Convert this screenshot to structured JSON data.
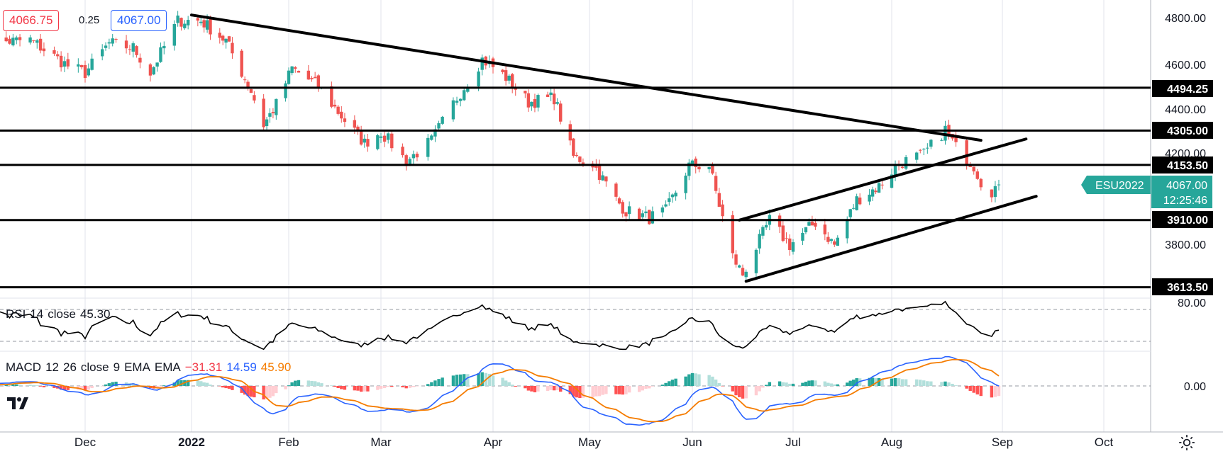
{
  "header": {
    "bid": "4066.75",
    "spread": "0.25",
    "ask": "4067.00"
  },
  "price_axis": {
    "ticks": [
      "4800.00",
      "4600.00",
      "4400.00",
      "4200.00",
      "3800.00"
    ],
    "level_labels": [
      "4494.25",
      "4305.00",
      "4153.50",
      "3910.00",
      "3613.50"
    ],
    "last_price": "4067.00",
    "countdown": "12:25:46",
    "symbol": "ESU2022",
    "last_color": "#26a69a",
    "level_color": "#000000"
  },
  "rsi": {
    "legend": {
      "name": "RSI",
      "length": "14",
      "source": "close",
      "value": "45.30"
    },
    "axis_tick": "80.00"
  },
  "macd": {
    "legend": {
      "name": "MACD",
      "fast": "12",
      "slow": "26",
      "source": "close",
      "signal": "9",
      "ma": "EMA",
      "ma2": "EMA",
      "v1": "−31.31",
      "v2": "14.59",
      "v3": "45.90"
    },
    "axis_tick": "0.00"
  },
  "time_axis": {
    "labels": [
      "Dec",
      "2022",
      "Feb",
      "Mar",
      "Apr",
      "May",
      "Jun",
      "Jul",
      "Aug",
      "Sep",
      "Oct"
    ]
  },
  "icons": {
    "logo": "tradingview-logo-icon",
    "settings": "gear-icon"
  },
  "colors": {
    "up": "#26a69a",
    "down": "#ef5350",
    "macd_line": "#2962ff",
    "signal_line": "#f57c00"
  },
  "chart_data": {
    "type": "candlestick",
    "instrument": "ESU2022",
    "timeframe": "daily",
    "x_range": [
      "2021-11",
      "2022-10"
    ],
    "ylim": [
      3550,
      4850
    ],
    "horizontal_levels": [
      4494.25,
      4305.0,
      4153.5,
      3910.0,
      3613.5
    ],
    "trendlines": [
      {
        "name": "falling resistance",
        "from": [
          "2022-01-01",
          4815
        ],
        "to": [
          "2022-08-26",
          4262
        ]
      },
      {
        "name": "upper channel",
        "from": [
          "2022-06-15",
          3910
        ],
        "to": [
          "2022-09-08",
          4268
        ]
      },
      {
        "name": "lower channel",
        "from": [
          "2022-06-17",
          3640
        ],
        "to": [
          "2022-09-11",
          4015
        ]
      }
    ],
    "series": [
      {
        "name": "price",
        "approx_closes": [
          [
            "2021-11-01",
            4690
          ],
          [
            "2021-11-15",
            4705
          ],
          [
            "2021-11-26",
            4590
          ],
          [
            "2021-12-01",
            4560
          ],
          [
            "2021-12-08",
            4690
          ],
          [
            "2021-12-15",
            4670
          ],
          [
            "2021-12-20",
            4560
          ],
          [
            "2021-12-28",
            4790
          ],
          [
            "2022-01-04",
            4790
          ],
          [
            "2022-01-12",
            4700
          ],
          [
            "2022-01-20",
            4480
          ],
          [
            "2022-01-24",
            4330
          ],
          [
            "2022-01-28",
            4420
          ],
          [
            "2022-02-02",
            4580
          ],
          [
            "2022-02-10",
            4500
          ],
          [
            "2022-02-18",
            4350
          ],
          [
            "2022-02-24",
            4250
          ],
          [
            "2022-03-01",
            4300
          ],
          [
            "2022-03-08",
            4170
          ],
          [
            "2022-03-15",
            4260
          ],
          [
            "2022-03-22",
            4450
          ],
          [
            "2022-03-29",
            4620
          ],
          [
            "2022-04-05",
            4540
          ],
          [
            "2022-04-12",
            4430
          ],
          [
            "2022-04-20",
            4450
          ],
          [
            "2022-04-26",
            4190
          ],
          [
            "2022-05-02",
            4160
          ],
          [
            "2022-05-09",
            4000
          ],
          [
            "2022-05-12",
            3950
          ],
          [
            "2022-05-19",
            3920
          ],
          [
            "2022-05-24",
            3950
          ],
          [
            "2022-05-31",
            4150
          ],
          [
            "2022-06-06",
            4150
          ],
          [
            "2022-06-10",
            3920
          ],
          [
            "2022-06-13",
            3750
          ],
          [
            "2022-06-16",
            3670
          ],
          [
            "2022-06-24",
            3910
          ],
          [
            "2022-06-30",
            3800
          ],
          [
            "2022-07-08",
            3900
          ],
          [
            "2022-07-14",
            3800
          ],
          [
            "2022-07-21",
            4000
          ],
          [
            "2022-07-28",
            4060
          ],
          [
            "2022-08-03",
            4160
          ],
          [
            "2022-08-10",
            4200
          ],
          [
            "2022-08-16",
            4310
          ],
          [
            "2022-08-19",
            4230
          ],
          [
            "2022-08-24",
            4150
          ],
          [
            "2022-08-26",
            4080
          ],
          [
            "2022-08-29",
            4040
          ],
          [
            "2022-08-31",
            4067
          ]
        ]
      }
    ],
    "rsi": {
      "length": 14,
      "value": 45.3,
      "levels": [
        70,
        30
      ]
    },
    "macd": {
      "fast": 12,
      "slow": 26,
      "signal": 9,
      "histogram": -31.31,
      "macd": 14.59,
      "signal_value": 45.9
    }
  }
}
